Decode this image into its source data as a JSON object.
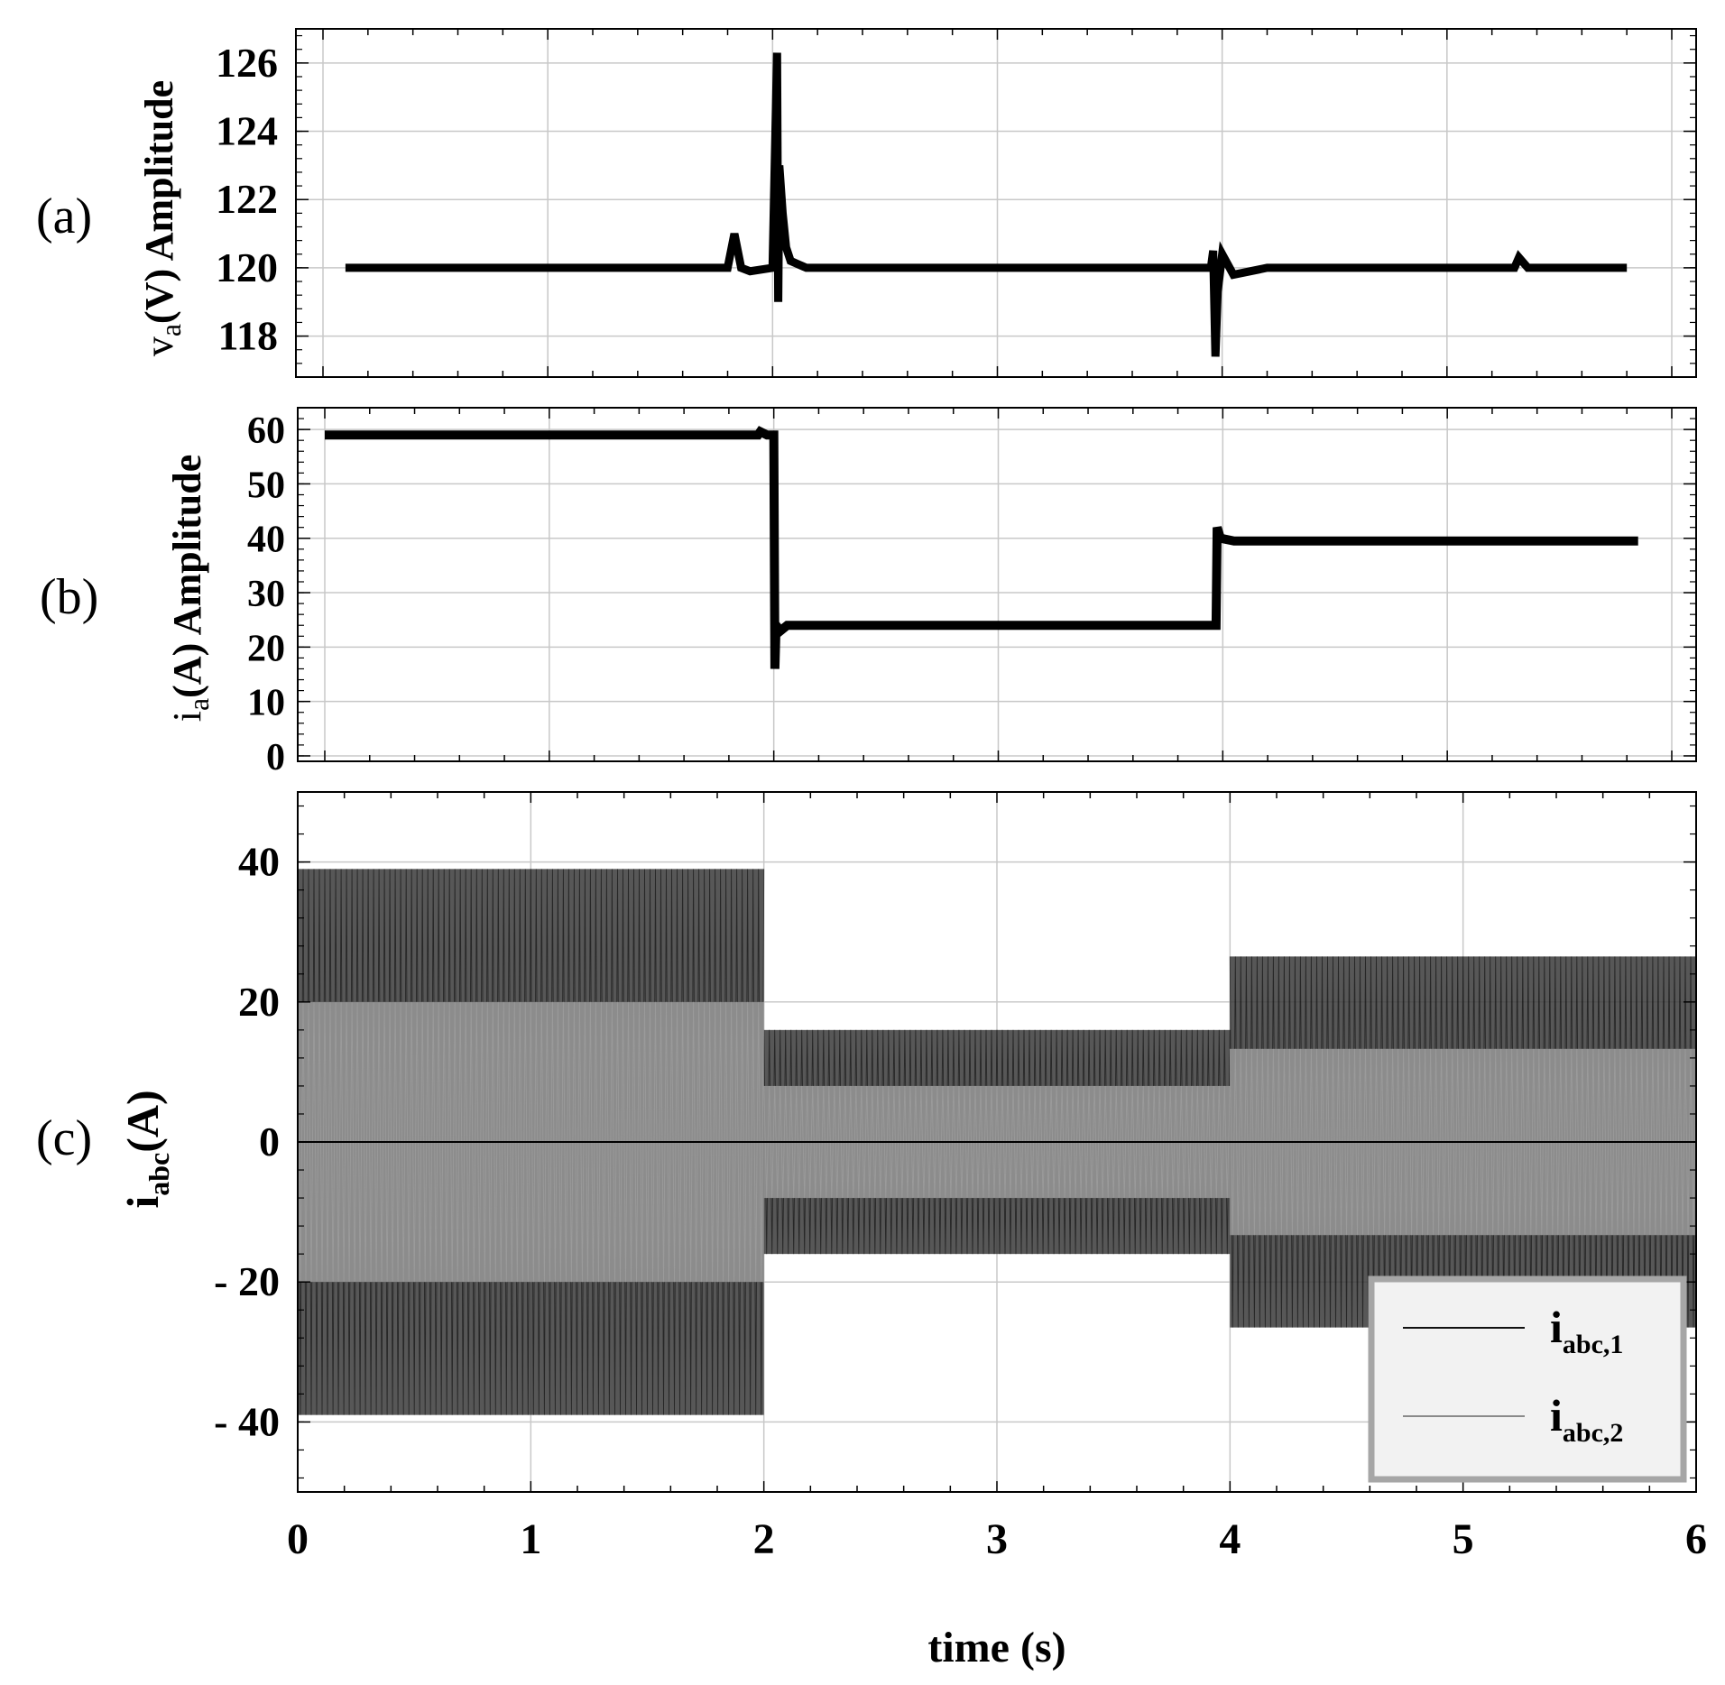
{
  "chart_data": [
    {
      "type": "line",
      "panel_label": "(a)",
      "ylabel_parts": [
        "v",
        "a",
        "(V) Amplitude"
      ],
      "xlim": [
        0,
        6
      ],
      "ylim": [
        116.8,
        127
      ],
      "yticks": [
        118,
        120,
        122,
        124,
        126
      ],
      "grid": true,
      "series": [
        {
          "name": "v_a amplitude",
          "color": "#000000",
          "points": [
            [
              0.1,
              120
            ],
            [
              1.8,
              120
            ],
            [
              1.83,
              121
            ],
            [
              1.86,
              120
            ],
            [
              1.9,
              119.9
            ],
            [
              2.0,
              120
            ],
            [
              2.02,
              126.3
            ],
            [
              2.025,
              119.0
            ],
            [
              2.03,
              123
            ],
            [
              2.045,
              121.6
            ],
            [
              2.06,
              120.6
            ],
            [
              2.08,
              120.2
            ],
            [
              2.15,
              120
            ],
            [
              3.95,
              120
            ],
            [
              3.96,
              120.5
            ],
            [
              3.97,
              117.4
            ],
            [
              3.98,
              119.3
            ],
            [
              4.0,
              120.4
            ],
            [
              4.05,
              119.8
            ],
            [
              4.2,
              120
            ],
            [
              5.3,
              120
            ],
            [
              5.32,
              120.3
            ],
            [
              5.36,
              120
            ],
            [
              5.8,
              120
            ]
          ]
        }
      ]
    },
    {
      "type": "line",
      "panel_label": "(b)",
      "ylabel_parts": [
        "i",
        "a",
        "(A) Amplitude"
      ],
      "xlim": [
        0,
        6
      ],
      "ylim": [
        -1,
        64
      ],
      "yticks": [
        0,
        10,
        20,
        30,
        40,
        50,
        60
      ],
      "grid": true,
      "series": [
        {
          "name": "i_a amplitude",
          "color": "#000000",
          "points": [
            [
              0,
              59
            ],
            [
              1.93,
              59
            ],
            [
              1.94,
              59.6
            ],
            [
              1.97,
              59
            ],
            [
              2.0,
              59
            ],
            [
              2.005,
              16
            ],
            [
              2.01,
              24
            ],
            [
              2.03,
              23
            ],
            [
              2.06,
              24
            ],
            [
              3.97,
              24
            ],
            [
              3.975,
              42
            ],
            [
              3.99,
              40
            ],
            [
              4.05,
              39.5
            ],
            [
              5.85,
              39.5
            ]
          ]
        }
      ]
    },
    {
      "type": "line",
      "panel_label": "(c)",
      "ylabel_parts": [
        "i",
        "abc",
        "(A)"
      ],
      "xlabel": "time (s)",
      "xlim": [
        0,
        6
      ],
      "ylim": [
        -50,
        50
      ],
      "xticks": [
        0,
        1,
        2,
        3,
        4,
        5,
        6
      ],
      "yticks": [
        -40,
        -20,
        0,
        20,
        40
      ],
      "ytick_labels": [
        "- 40",
        "- 20",
        "0",
        "20",
        "40"
      ],
      "grid": true,
      "legend_position": "bottom-right",
      "series": [
        {
          "name": "i_abc,1",
          "legend_main": "i",
          "legend_sub": "abc,1",
          "color": "#111111",
          "segments": [
            {
              "t0": 0,
              "t1": 2,
              "peak": 39
            },
            {
              "t0": 2,
              "t1": 4,
              "peak": 16
            },
            {
              "t0": 4,
              "t1": 6,
              "peak": 26.5
            }
          ]
        },
        {
          "name": "i_abc,2",
          "legend_main": "i",
          "legend_sub": "abc,2",
          "color": "#8a8a8a",
          "segments": [
            {
              "t0": 0,
              "t1": 2,
              "peak": 20
            },
            {
              "t0": 2,
              "t1": 4,
              "peak": 8
            },
            {
              "t0": 4,
              "t1": 6,
              "peak": 13.3
            }
          ]
        }
      ]
    }
  ]
}
